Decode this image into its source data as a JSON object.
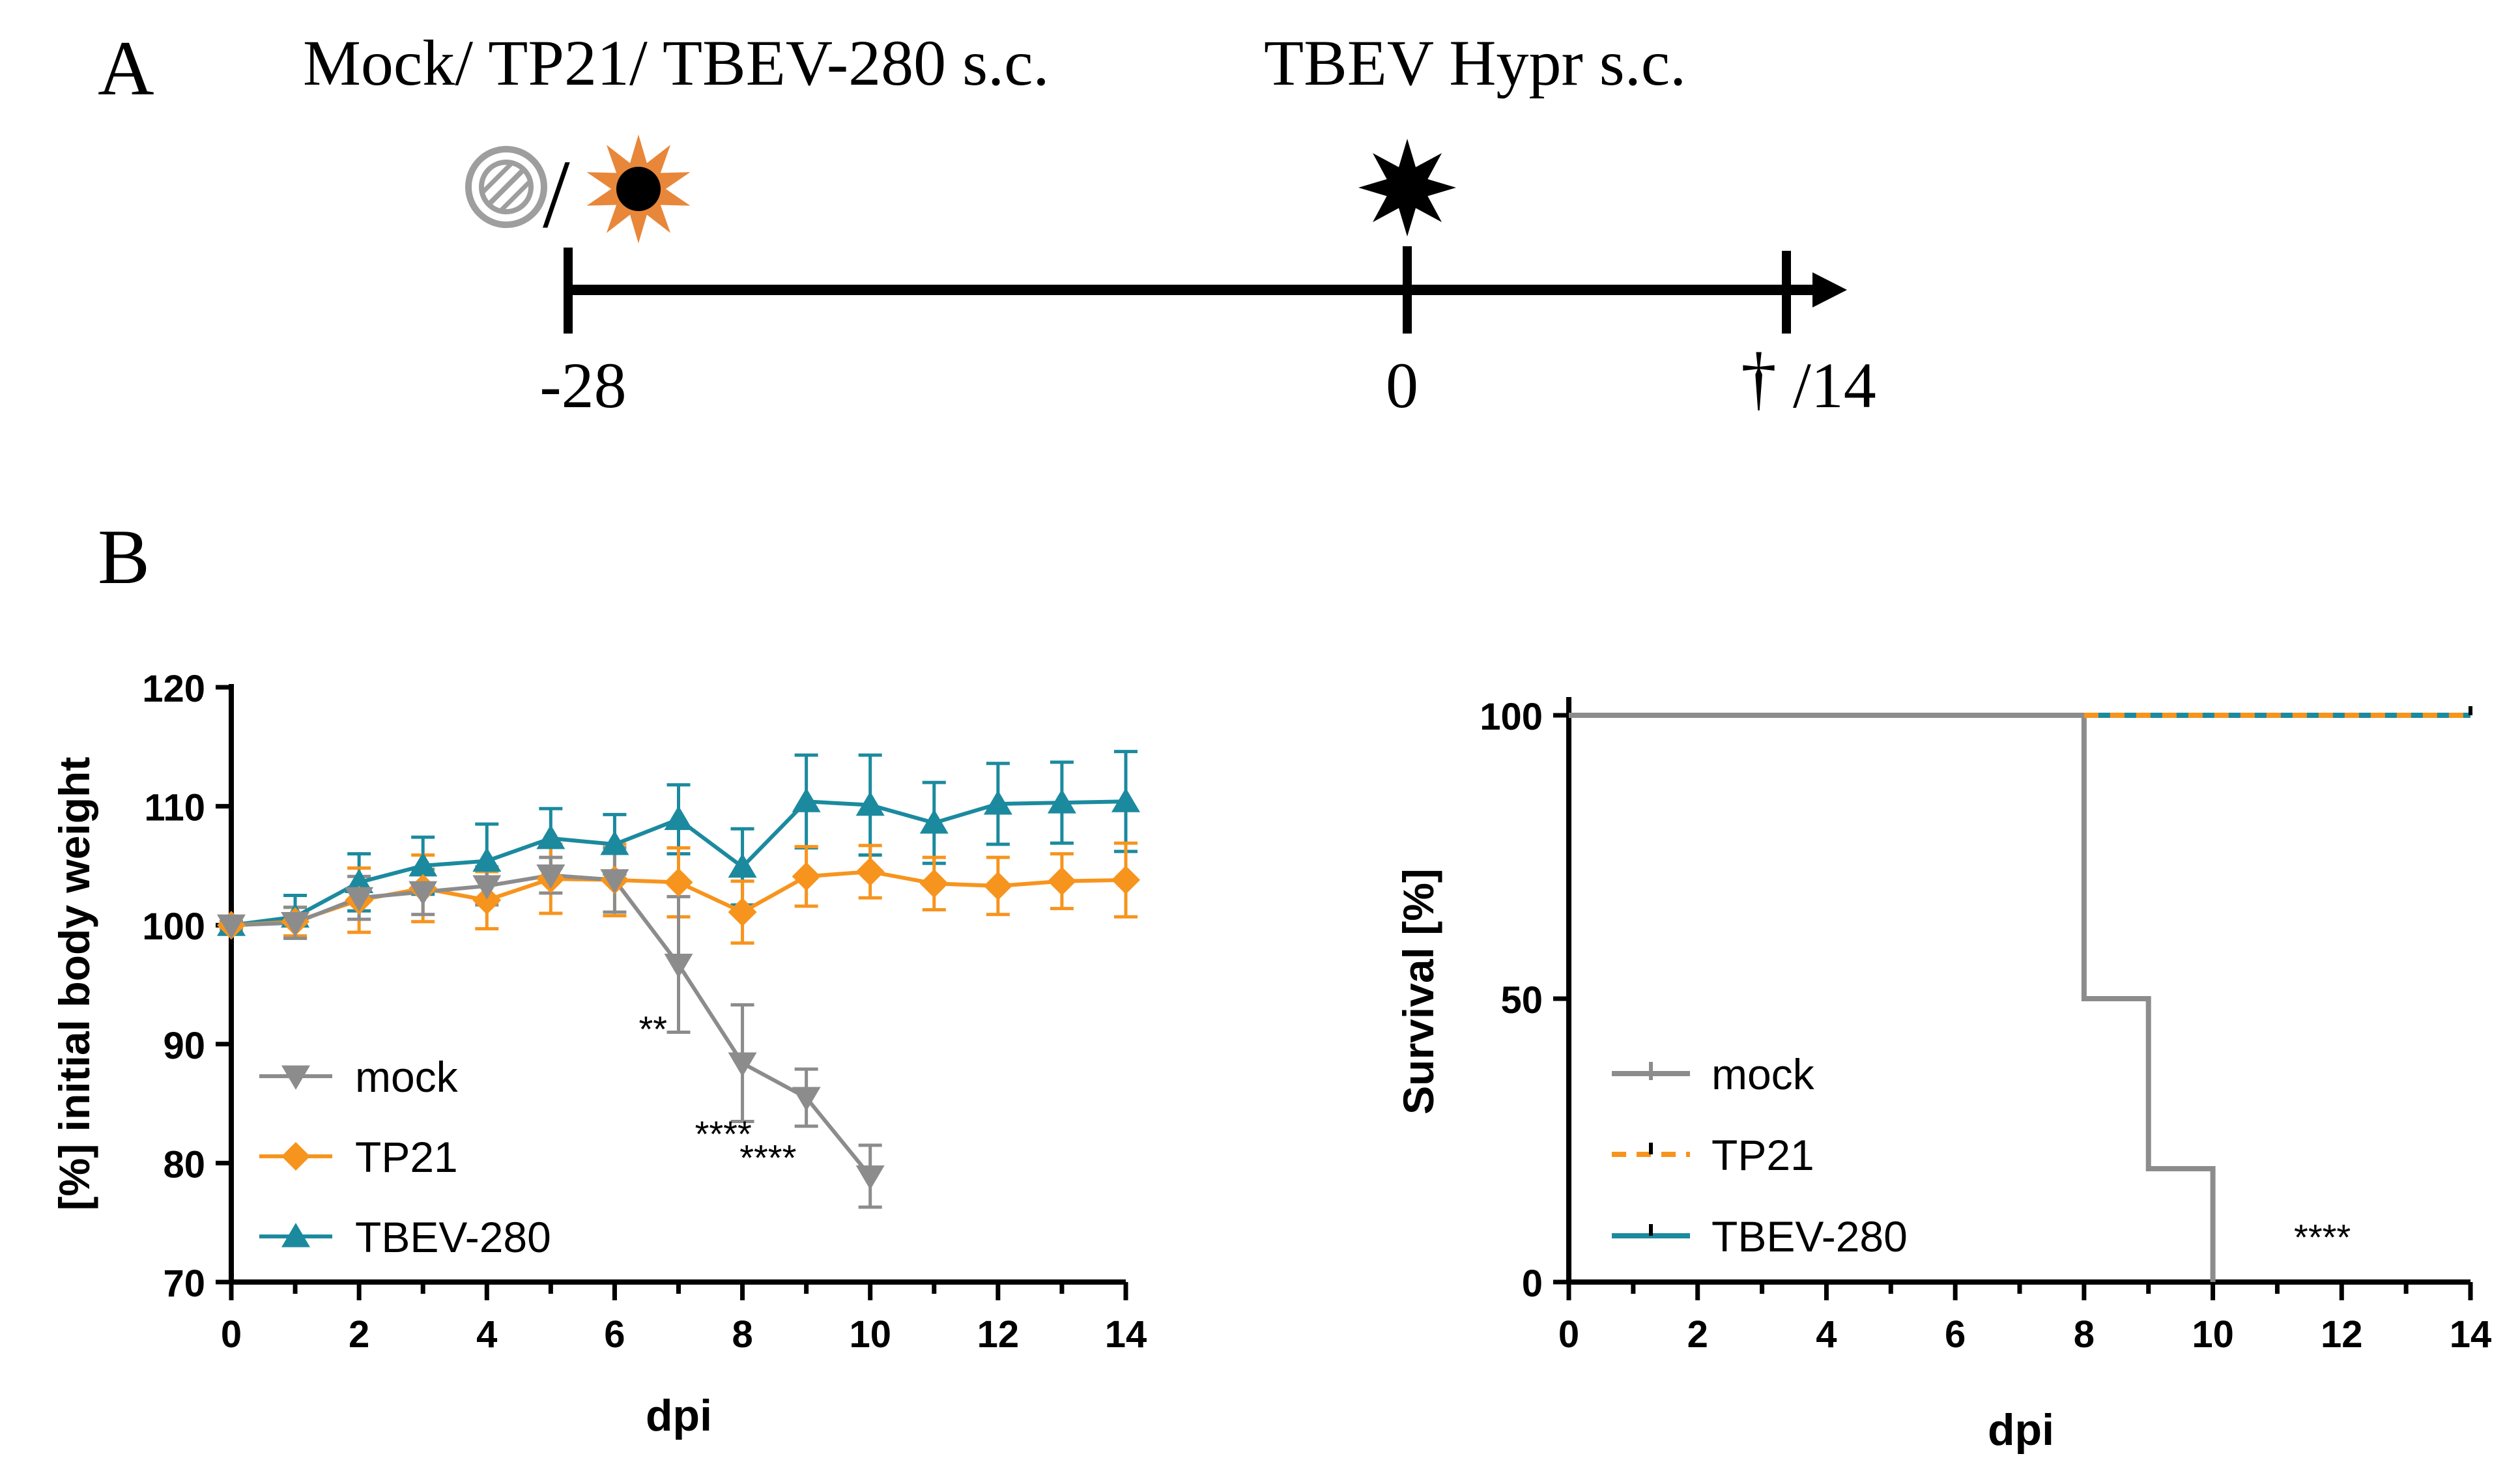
{
  "panel_a": {
    "letter": "A",
    "label_left": "Mock/ TP21/ TBEV-280 s.c.",
    "label_right": "TBEV Hypr s.c.",
    "tick_start": "-28",
    "tick_mid": "0",
    "tick_end_symbol": "†",
    "tick_end": "/14",
    "slash": "/",
    "icons": [
      "mock-icon",
      "attenuated-virus-icon",
      "virulent-virus-icon",
      "dagger-icon"
    ],
    "colors": {
      "attenuated_virus": "#E8873A",
      "line": "#000000",
      "mock_icon": "#9E9E9E"
    }
  },
  "panel_b": {
    "letter": "B"
  },
  "chart_data": [
    {
      "type": "line",
      "xlabel": "dpi",
      "ylabel": "[%] initial body weight",
      "xlim": [
        0,
        14
      ],
      "ylim": [
        70,
        120
      ],
      "xticks": [
        0,
        2,
        4,
        6,
        8,
        10,
        12,
        14
      ],
      "yticks": [
        70,
        80,
        90,
        100,
        110,
        120
      ],
      "legend_position": "bottom-left",
      "series": [
        {
          "name": "mock",
          "color": "#8C8C8C",
          "marker": "triangle-down",
          "x": [
            0,
            1,
            2,
            3,
            4,
            5,
            6,
            7,
            8,
            9,
            10
          ],
          "values": [
            100,
            100.2,
            102.3,
            102.8,
            103.3,
            104.2,
            103.8,
            96.7,
            88.4,
            85.5,
            78.9
          ],
          "error": [
            0.3,
            1.3,
            1.8,
            1.9,
            1.6,
            1.5,
            2.7,
            5.7,
            4.9,
            2.4,
            2.6
          ]
        },
        {
          "name": "TP21",
          "color": "#F7941D",
          "marker": "diamond",
          "x": [
            0,
            1,
            2,
            3,
            4,
            5,
            6,
            7,
            8,
            9,
            10,
            11,
            12,
            13,
            14
          ],
          "values": [
            100,
            100.3,
            102.1,
            103.1,
            102.1,
            103.9,
            103.8,
            103.6,
            101.1,
            104.1,
            104.5,
            103.5,
            103.3,
            103.7,
            103.8
          ],
          "error": [
            0.3,
            1.2,
            2.7,
            2.8,
            2.4,
            2.9,
            3.0,
            2.9,
            2.6,
            2.5,
            2.2,
            2.2,
            2.4,
            2.3,
            3.1
          ]
        },
        {
          "name": "TBEV-280",
          "color": "#1B8A9E",
          "marker": "triangle-up",
          "x": [
            0,
            1,
            2,
            3,
            4,
            5,
            6,
            7,
            8,
            9,
            10,
            11,
            12,
            13,
            14
          ],
          "values": [
            100,
            100.7,
            103.6,
            105.0,
            105.4,
            107.3,
            106.8,
            108.9,
            104.9,
            110.4,
            110.1,
            108.6,
            110.2,
            110.3,
            110.4
          ],
          "error": [
            0.3,
            1.8,
            2.4,
            2.4,
            3.1,
            2.5,
            2.5,
            2.9,
            3.2,
            3.9,
            4.2,
            3.4,
            3.4,
            3.4,
            4.2
          ]
        }
      ],
      "annotations": [
        {
          "text": "**",
          "x": 6.6,
          "y": 90.2
        },
        {
          "text": "****",
          "x": 7.7,
          "y": 81.4
        },
        {
          "text": "****",
          "x": 8.4,
          "y": 79.4
        }
      ]
    },
    {
      "type": "line",
      "subtype": "survival-step",
      "xlabel": "dpi",
      "ylabel": "Survival [%]",
      "xlim": [
        0,
        14
      ],
      "ylim": [
        0,
        100
      ],
      "xticks": [
        0,
        2,
        4,
        6,
        8,
        10,
        12,
        14
      ],
      "yticks": [
        0,
        50,
        100
      ],
      "legend_position": "bottom-left",
      "series": [
        {
          "name": "mock",
          "color": "#8C8C8C",
          "style": "solid",
          "x": [
            0,
            8,
            9,
            10
          ],
          "values": [
            100,
            50,
            20,
            0
          ]
        },
        {
          "name": "TP21",
          "color": "#F7941D",
          "style": "dashed",
          "x": [
            0,
            14
          ],
          "values": [
            100,
            100
          ]
        },
        {
          "name": "TBEV-280",
          "color": "#1B8A9E",
          "style": "solid",
          "x": [
            0,
            14
          ],
          "values": [
            100,
            100
          ]
        }
      ],
      "annotations": [
        {
          "text": "****",
          "x": 11.7,
          "y": 5
        }
      ]
    }
  ]
}
